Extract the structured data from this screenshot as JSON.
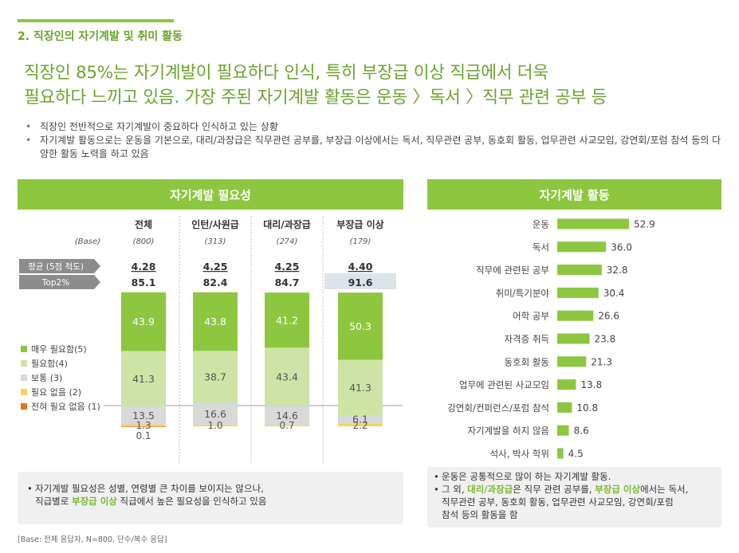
{
  "section_title": "2. 직장인의 자기계발 및 취미 활동",
  "headline_lines": [
    "직장인 85%는 자기계발이 필요하다 인식, 특히 부장급 이상 직급에서 더욱",
    "필요하다 느끼고 있음. 가장 주된 자기계발 활동은 운동 〉독서 〉직무 관련 공부 등"
  ],
  "bullets": [
    "직장인 전반적으로 자기계발이 중요하다 인식하고 있는 상황",
    "자기계발 활동으로는 운동을 기본으로, 대리/과장급은 직무관련 공부를, 부장급 이상에서는 독서, 직무관련 공부, 동호회 활동, 업무관련 사교모임, 강연회/포럼 참석 등의 다양한 활동 노력을 하고 있음"
  ],
  "left_panel_title": "자기계발 필요성",
  "right_panel_title": "자기계발 활동",
  "colors": {
    "green_dark": "#8dc63f",
    "green_light": "#cde4a6",
    "gray": "#d9d9d9",
    "yellow": "#f7d25a",
    "orange": "#e8731d",
    "label_gray": "#8c8c8c",
    "highlight_box": "#dde3ec"
  },
  "chart_data": [
    {
      "type": "bar",
      "stacked": true,
      "categories": [
        "전체",
        "인턴/사원급",
        "대리/과장급",
        "부장급 이상"
      ],
      "base_label": "(Base)",
      "bases": [
        "(800)",
        "(313)",
        "(274)",
        "(179)"
      ],
      "mean_label": "평균 (5점 척도)",
      "means": [
        "4.28",
        "4.25",
        "4.25",
        "4.40"
      ],
      "top2_label": "Top2%",
      "top2": [
        "85.1",
        "82.4",
        "84.7",
        "91.6"
      ],
      "highlight_index": 3,
      "ylim": [
        0,
        100
      ],
      "legend_position": "left",
      "series": [
        {
          "name": "매우 필요함(5)",
          "values": [
            43.9,
            43.8,
            41.2,
            50.3
          ]
        },
        {
          "name": "필요함(4)",
          "values": [
            41.3,
            38.7,
            43.4,
            41.3
          ]
        },
        {
          "name": "보통 (3)",
          "values": [
            13.5,
            16.6,
            14.6,
            6.1
          ]
        },
        {
          "name": "필요 없음 (2)",
          "values": [
            1.3,
            1.0,
            0.7,
            2.2
          ]
        },
        {
          "name": "전혀 필요 없음 (1)",
          "values": [
            0.1,
            0,
            0,
            0
          ]
        }
      ]
    },
    {
      "type": "bar",
      "orientation": "horizontal",
      "categories": [
        "운동",
        "독서",
        "직무에 관련된 공부",
        "취미/특기분야",
        "어학 공부",
        "자격증 취득",
        "동호회 활동",
        "업무에 관련된 사교모임",
        "강연회/컨퍼런스/포럼 참석",
        "자기계발을 하지 않음",
        "석사, 박사 학위"
      ],
      "values": [
        52.9,
        36.0,
        32.8,
        30.4,
        26.6,
        23.8,
        21.3,
        13.8,
        10.8,
        8.6,
        4.5
      ],
      "value_labels": [
        "52.9",
        "36.0",
        "32.8",
        "30.4",
        "26.6",
        "23.8",
        "21.3",
        "13.8",
        "10.8",
        "8.6",
        "4.5"
      ]
    }
  ],
  "left_note": {
    "line1": "자기계발 필요성은 성별, 연령별 큰 차이를 보이지는 않으나,",
    "line2_before": "직급별로 ",
    "line2_highlight": "부장급 이상",
    "line2_after": " 직급에서 높은 필요성을 인식하고 있음"
  },
  "right_note": {
    "line1": "운동은 공통적으로 많이 하는 자기계발 활동.",
    "line2_before": "그 외, ",
    "line2_hl1": "대리/과장급",
    "line2_mid": "은 직무 관련 공부를, ",
    "line2_hl2": "부장급 이상",
    "line2_after": "에서는 독서,",
    "line3": "직무관련 공부, 동호회 활동, 업무관련 사교모임, 강연회/포럼",
    "line4": "참석 등의 활동을 함"
  },
  "base_note": "[Base: 전체 응답자, N=800, 단수/복수 응답]"
}
